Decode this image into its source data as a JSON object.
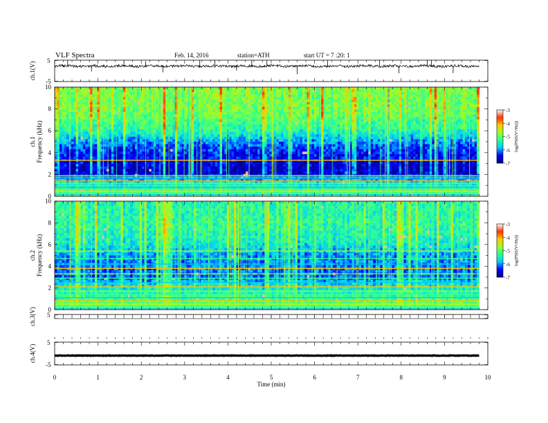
{
  "header": {
    "title": "VLF Spectra",
    "date": "Feb. 14, 2016",
    "station": "station=ATH",
    "start_ut": "start UT =  7 :20: 1"
  },
  "colors": {
    "trace": "#000000",
    "colormap": [
      "#000080",
      "#0000ff",
      "#00c8ff",
      "#28ff9a",
      "#9aff28",
      "#ffc800",
      "#ff3200",
      "#ffffff"
    ]
  },
  "chart_data": [
    {
      "type": "line",
      "name": "ch1-waveform",
      "ylabel": "ch.1(V)",
      "ylim": [
        -5,
        5
      ],
      "ytick_labels": [
        "5",
        "-5"
      ],
      "xlim": [
        0,
        10
      ],
      "data_span_min": 9.8,
      "baseline_v": 2.2,
      "noise_amplitude_v": 0.6,
      "spikes_min": [
        0.3,
        0.85,
        1.6,
        2.1,
        2.5,
        3.35,
        3.7,
        4.2,
        4.55,
        4.9,
        5.6,
        6.3,
        7.5,
        7.95,
        8.6,
        8.7,
        9.2
      ]
    },
    {
      "type": "heatmap",
      "name": "ch1-spectrogram",
      "ylabel": "ch.1\nFrequency (kHz)",
      "ylim": [
        0,
        10
      ],
      "ytick_labels": [
        "0",
        "2",
        "4",
        "6",
        "8",
        "10"
      ],
      "xlim": [
        0,
        10
      ],
      "data_span_min": 9.8,
      "colorbar_label": "log(PSD(V²/Hz))",
      "colorbar_ticks": [
        "-3",
        "-4",
        "-5",
        "-6",
        "-7"
      ],
      "clim": [
        -7,
        -3
      ],
      "profile_khz": [
        0,
        0.5,
        1,
        1.5,
        2,
        2.5,
        3,
        4,
        5,
        6,
        7,
        8,
        9,
        10
      ],
      "profile_level": [
        -4.9,
        -5.2,
        -5.6,
        -6.0,
        -6.6,
        -6.7,
        -6.6,
        -6.4,
        -6.0,
        -5.4,
        -5.1,
        -4.9,
        -4.9,
        -4.8
      ],
      "lines_khz": [
        0.15,
        0.3,
        0.45,
        0.6,
        0.8,
        1.0,
        1.2,
        1.4,
        1.6,
        1.75,
        1.9,
        3.3
      ]
    },
    {
      "type": "heatmap",
      "name": "ch2-spectrogram",
      "ylabel": "ch.2\nFrequency (kHz)",
      "ylim": [
        0,
        10
      ],
      "ytick_labels": [
        "0",
        "2",
        "4",
        "6",
        "8",
        "10"
      ],
      "xlim": [
        0,
        10
      ],
      "data_span_min": 9.8,
      "colorbar_label": "log(PSD(V²/Hz))",
      "colorbar_ticks": [
        "-3",
        "-4",
        "-5",
        "-6",
        "-7"
      ],
      "clim": [
        -7,
        -3
      ],
      "profile_khz": [
        0,
        0.5,
        1,
        1.5,
        2,
        2.5,
        3,
        4,
        5,
        6,
        7,
        8,
        9,
        10
      ],
      "profile_level": [
        -4.6,
        -5.0,
        -5.2,
        -5.4,
        -5.6,
        -5.8,
        -6.2,
        -6.1,
        -6.0,
        -5.6,
        -5.4,
        -5.3,
        -5.4,
        -5.4
      ],
      "lines_khz": [
        0.1,
        0.3,
        0.5,
        0.8,
        1.1,
        1.4,
        1.7,
        2.1,
        2.5,
        2.9,
        3.3,
        3.8,
        4.2,
        4.7,
        5.4
      ]
    },
    {
      "type": "line",
      "name": "ch3-waveform",
      "ylabel": "ch.3(V)",
      "ylim": [
        -5,
        5
      ],
      "ytick_labels": [
        "5"
      ],
      "xlim": [
        0,
        10
      ],
      "data_span_min": 9.8,
      "baseline_v": -5,
      "noise_amplitude_v": 0.1,
      "spikes_min": []
    },
    {
      "type": "line",
      "name": "ch4-waveform",
      "ylabel": "ch.4(V)",
      "ylim": [
        -5,
        5
      ],
      "ytick_labels": [
        "5",
        "-5"
      ],
      "xlim": [
        0,
        10
      ],
      "data_span_min": 9.8,
      "baseline_v": -0.9,
      "noise_amplitude_v": 0.1,
      "spikes_min": []
    }
  ],
  "x_axis": {
    "label": "Time (min)",
    "tick_labels": [
      "0",
      "1",
      "2",
      "3",
      "4",
      "5",
      "6",
      "7",
      "8",
      "9",
      "10"
    ]
  }
}
